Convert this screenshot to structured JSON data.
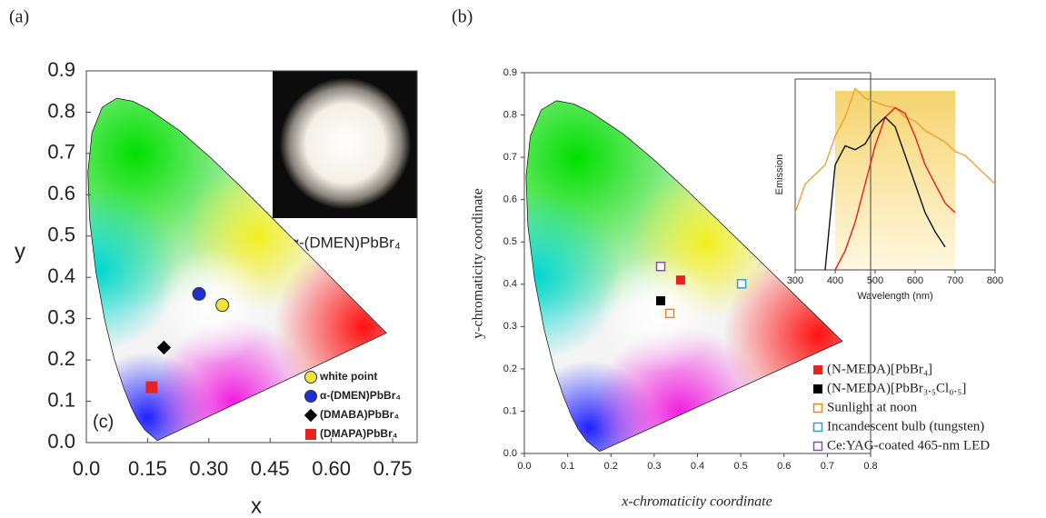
{
  "chart_data": [
    {
      "type": "scatter",
      "panel_label": "(a)",
      "inner_label": "(c)",
      "inset_label": "α-(DMEN)PbBr₄",
      "xlabel": "x",
      "ylabel": "y",
      "xlim": [
        0,
        0.81
      ],
      "ylim": [
        0,
        0.9
      ],
      "xticks": [
        {
          "value": 0,
          "label": "0.0"
        },
        0.15,
        {
          "value": 0.3,
          "label": "0.30"
        },
        0.45,
        {
          "value": 0.6,
          "label": "0.60"
        },
        0.75
      ],
      "yticks": [
        {
          "value": 0,
          "label": "0.0"
        },
        0.1,
        0.2,
        0.3,
        0.4,
        0.5,
        0.6,
        0.7,
        0.8,
        0.9
      ],
      "series": [
        {
          "name": "white point",
          "color": "#f2e33a",
          "marker": "circle",
          "filled": true,
          "x": [
            0.333
          ],
          "values": [
            0.333
          ]
        },
        {
          "name": "α-(DMEN)PbBr₄",
          "color": "#1f2fd6",
          "marker": "circle",
          "filled": true,
          "x": [
            0.276
          ],
          "values": [
            0.36
          ]
        },
        {
          "name": "(DMABA)PbBr₄",
          "color": "#000000",
          "marker": "diamond",
          "filled": true,
          "x": [
            0.19
          ],
          "values": [
            0.23
          ]
        },
        {
          "name": "(DMAPA)PbBr₄",
          "color": "#e8231f",
          "marker": "square",
          "filled": true,
          "x": [
            0.16
          ],
          "values": [
            0.134
          ]
        }
      ]
    },
    {
      "type": "scatter",
      "panel_label": "(b)",
      "xlabel": "x-chromaticity coordinate",
      "ylabel": "y-chromaticity coordinate",
      "xlim": [
        0,
        0.8
      ],
      "ylim": [
        0,
        0.9
      ],
      "xticks": [
        {
          "value": 0,
          "label": "0.0"
        },
        0.1,
        0.2,
        0.3,
        0.4,
        0.5,
        0.6,
        0.7,
        0.8
      ],
      "yticks": [
        {
          "value": 0,
          "label": "0.0"
        },
        0.1,
        0.2,
        0.3,
        0.4,
        0.5,
        0.6,
        0.7,
        0.8,
        0.9
      ],
      "series": [
        {
          "name": "(N-MEDA)[PbBr₄]",
          "color": "#e8231f",
          "marker": "square",
          "filled": true,
          "x": [
            0.361
          ],
          "values": [
            0.41
          ]
        },
        {
          "name": "(N-MEDA)[PbBr₃.₅Cl₀.₅]",
          "color": "#000000",
          "marker": "square",
          "filled": true,
          "x": [
            0.315
          ],
          "values": [
            0.361
          ]
        },
        {
          "name": "Sunlight at noon",
          "color": "#e8862a",
          "marker": "square",
          "filled": false,
          "x": [
            0.336
          ],
          "values": [
            0.331
          ]
        },
        {
          "name": "Incandescent bulb (tungsten)",
          "color": "#2a9ed8",
          "marker": "square",
          "filled": false,
          "x": [
            0.502
          ],
          "values": [
            0.401
          ]
        },
        {
          "name": "Ce:YAG-coated 465-nm LED",
          "color": "#8a4fa8",
          "marker": "square",
          "filled": false,
          "x": [
            0.315
          ],
          "values": [
            0.442
          ]
        }
      ]
    },
    {
      "type": "line",
      "xlabel": "Wavelength (nm)",
      "ylabel": "Emission",
      "xlim": [
        300,
        800
      ],
      "ylim": [
        0,
        1
      ],
      "xticks": [
        300,
        400,
        500,
        600,
        700,
        800
      ],
      "x": [
        300,
        325,
        350,
        375,
        400,
        425,
        450,
        475,
        500,
        525,
        550,
        575,
        600,
        625,
        650,
        675,
        700,
        725,
        750,
        775,
        800
      ],
      "series": [
        {
          "color": "#f0a030",
          "values": [
            0.3,
            0.45,
            0.5,
            0.55,
            0.7,
            0.8,
            0.95,
            0.9,
            0.88,
            0.86,
            0.85,
            0.8,
            0.78,
            0.73,
            0.7,
            0.67,
            0.62,
            0.6,
            0.55,
            0.5,
            0.45
          ]
        },
        {
          "color": "#e02020",
          "values": [
            null,
            null,
            null,
            null,
            0,
            0.1,
            0.25,
            0.45,
            0.65,
            0.8,
            0.85,
            0.82,
            0.7,
            0.55,
            0.45,
            0.35,
            0.3,
            null,
            null,
            null,
            null
          ]
        },
        {
          "color": "#111111",
          "values": [
            null,
            null,
            null,
            0,
            0.55,
            0.65,
            0.63,
            0.66,
            0.75,
            0.8,
            0.75,
            0.6,
            0.45,
            0.3,
            0.2,
            0.12,
            null,
            null,
            null,
            null,
            null
          ]
        }
      ]
    }
  ]
}
